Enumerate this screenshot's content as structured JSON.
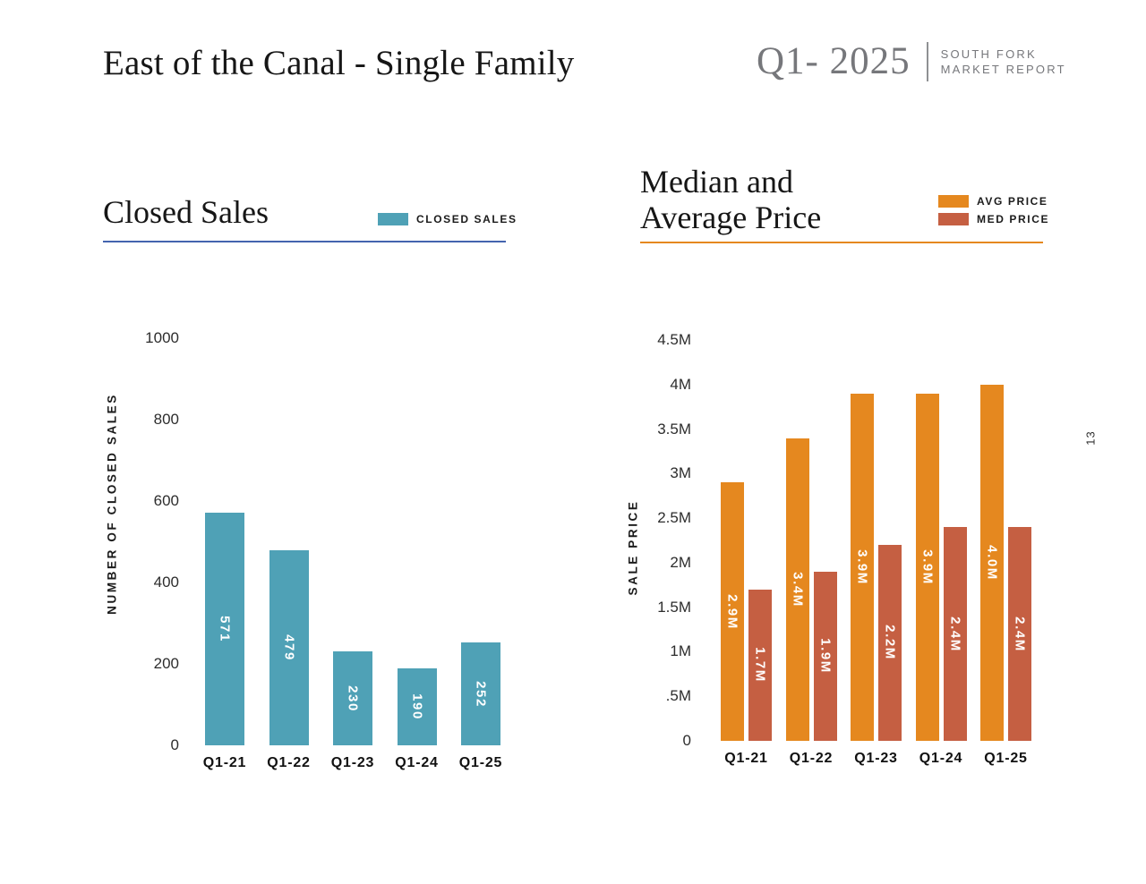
{
  "header": {
    "title": "East of the Canal - Single Family",
    "quarter": "Q1- 2025",
    "brand_line1": "SOUTH FORK",
    "brand_line2": "MARKET REPORT"
  },
  "page_number": "13",
  "colors": {
    "teal": "#4fa1b6",
    "orange": "#e5881f",
    "rust": "#c55f42",
    "blue_rule": "#4464ae",
    "orange_rule": "#e5881f",
    "header_gray": "#76777b"
  },
  "chart_data": [
    {
      "type": "bar",
      "title": "Closed Sales",
      "ylabel": "NUMBER OF CLOSED SALES",
      "categories": [
        "Q1-21",
        "Q1-22",
        "Q1-23",
        "Q1-24",
        "Q1-25"
      ],
      "series": [
        {
          "name": "CLOSED SALES",
          "color": "#4fa1b6",
          "values": [
            571,
            479,
            230,
            190,
            252
          ],
          "labels": [
            "571",
            "479",
            "230",
            "190",
            "252"
          ]
        }
      ],
      "yticks": [
        "0",
        "200",
        "400",
        "600",
        "800",
        "1000"
      ],
      "ytick_values": [
        0,
        200,
        400,
        600,
        800,
        1000
      ],
      "ylim": [
        0,
        1000
      ],
      "grid": false,
      "legend_position": "top-right",
      "accent_rule_color": "#4464ae"
    },
    {
      "type": "bar",
      "title": "Median and Average Price",
      "title_lines": [
        "Median and",
        "Average Price"
      ],
      "ylabel": "SALE PRICE",
      "units": "millions of dollars",
      "categories": [
        "Q1-21",
        "Q1-22",
        "Q1-23",
        "Q1-24",
        "Q1-25"
      ],
      "series": [
        {
          "name": "AVG PRICE",
          "color": "#e5881f",
          "values": [
            2.9,
            3.4,
            3.9,
            3.9,
            4.0
          ],
          "labels": [
            "2.9M",
            "3.4M",
            "3.9M",
            "3.9M",
            "4.0M"
          ]
        },
        {
          "name": "MED PRICE",
          "color": "#c55f42",
          "values": [
            1.7,
            1.9,
            2.2,
            2.4,
            2.4
          ],
          "labels": [
            "1.7M",
            "1.9M",
            "2.2M",
            "2.4M",
            "2.4M"
          ]
        }
      ],
      "yticks": [
        "0",
        ".5M",
        "1M",
        "1.5M",
        "2M",
        "2.5M",
        "3M",
        "3.5M",
        "4M",
        "4.5M"
      ],
      "ytick_values": [
        0,
        0.5,
        1,
        1.5,
        2,
        2.5,
        3,
        3.5,
        4,
        4.5
      ],
      "ylim": [
        0,
        4.5
      ],
      "grid": false,
      "legend_position": "top-right",
      "accent_rule_color": "#e5881f"
    }
  ]
}
